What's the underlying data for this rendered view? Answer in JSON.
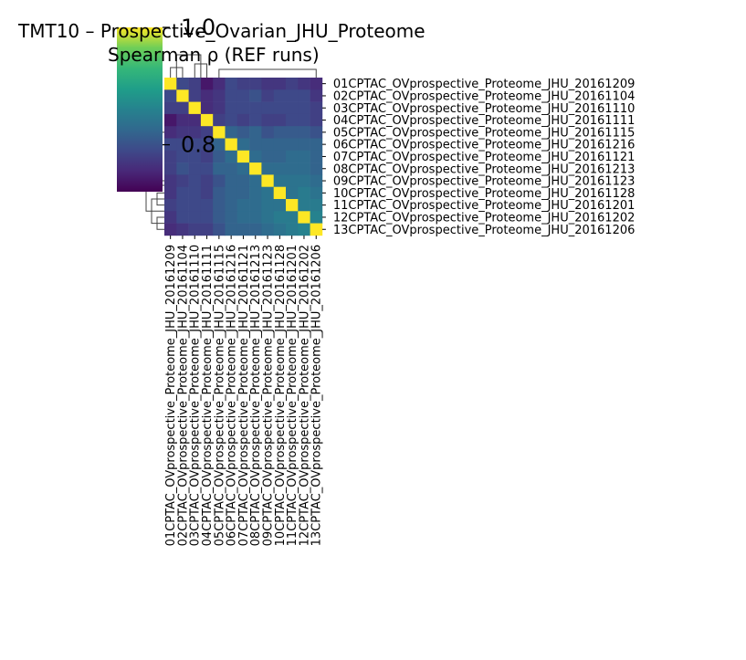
{
  "chart_data": {
    "type": "heatmap",
    "title_line1": "TMT10 – Prospective_Ovarian_JHU_Proteome",
    "title_line2": "Spearman ρ (REF runs)",
    "labels": [
      "01CPTAC_OVprospective_Proteome_JHU_20161209",
      "02CPTAC_OVprospective_Proteome_JHU_20161104",
      "03CPTAC_OVprospective_Proteome_JHU_20161110",
      "04CPTAC_OVprospective_Proteome_JHU_20161111",
      "05CPTAC_OVprospective_Proteome_JHU_20161115",
      "06CPTAC_OVprospective_Proteome_JHU_20161216",
      "07CPTAC_OVprospective_Proteome_JHU_20161121",
      "08CPTAC_OVprospective_Proteome_JHU_20161213",
      "09CPTAC_OVprospective_Proteome_JHU_20161123",
      "10CPTAC_OVprospective_Proteome_JHU_20161128",
      "11CPTAC_OVprospective_Proteome_JHU_20161201",
      "12CPTAC_OVprospective_Proteome_JHU_20161202",
      "13CPTAC_OVprospective_Proteome_JHU_20161206"
    ],
    "colormap": "viridis",
    "colorbar_range": [
      0.72,
      1.0
    ],
    "colorbar_ticks": [
      {
        "value": 1.0,
        "label": "1.0"
      },
      {
        "value": 0.8,
        "label": "0.8"
      }
    ],
    "dendrogram_left": true,
    "dendrogram_top": true,
    "values": [
      [
        1.0,
        0.79,
        0.78,
        0.74,
        0.76,
        0.79,
        0.78,
        0.78,
        0.77,
        0.77,
        0.78,
        0.77,
        0.76
      ],
      [
        0.79,
        1.0,
        0.78,
        0.76,
        0.77,
        0.79,
        0.79,
        0.8,
        0.78,
        0.79,
        0.79,
        0.79,
        0.77
      ],
      [
        0.78,
        0.78,
        1.0,
        0.76,
        0.77,
        0.79,
        0.79,
        0.79,
        0.79,
        0.79,
        0.79,
        0.79,
        0.78
      ],
      [
        0.74,
        0.76,
        0.76,
        1.0,
        0.78,
        0.79,
        0.78,
        0.79,
        0.78,
        0.78,
        0.79,
        0.79,
        0.78
      ],
      [
        0.76,
        0.77,
        0.77,
        0.78,
        1.0,
        0.82,
        0.81,
        0.82,
        0.8,
        0.81,
        0.81,
        0.81,
        0.8
      ],
      [
        0.79,
        0.79,
        0.79,
        0.79,
        0.82,
        1.0,
        0.83,
        0.82,
        0.82,
        0.82,
        0.82,
        0.82,
        0.82
      ],
      [
        0.78,
        0.79,
        0.79,
        0.78,
        0.81,
        0.83,
        1.0,
        0.83,
        0.82,
        0.82,
        0.83,
        0.83,
        0.82
      ],
      [
        0.78,
        0.8,
        0.79,
        0.79,
        0.82,
        0.82,
        0.83,
        1.0,
        0.83,
        0.83,
        0.83,
        0.83,
        0.82
      ],
      [
        0.77,
        0.78,
        0.79,
        0.78,
        0.8,
        0.82,
        0.82,
        0.83,
        1.0,
        0.84,
        0.84,
        0.84,
        0.83
      ],
      [
        0.77,
        0.79,
        0.79,
        0.78,
        0.81,
        0.82,
        0.82,
        0.83,
        0.84,
        1.0,
        0.84,
        0.85,
        0.84
      ],
      [
        0.78,
        0.79,
        0.79,
        0.79,
        0.81,
        0.82,
        0.83,
        0.83,
        0.84,
        0.84,
        1.0,
        0.85,
        0.85
      ],
      [
        0.77,
        0.79,
        0.79,
        0.79,
        0.81,
        0.82,
        0.83,
        0.83,
        0.84,
        0.85,
        0.85,
        1.0,
        0.86
      ],
      [
        0.76,
        0.77,
        0.78,
        0.78,
        0.8,
        0.82,
        0.82,
        0.82,
        0.83,
        0.84,
        0.85,
        0.86,
        1.0
      ]
    ]
  }
}
